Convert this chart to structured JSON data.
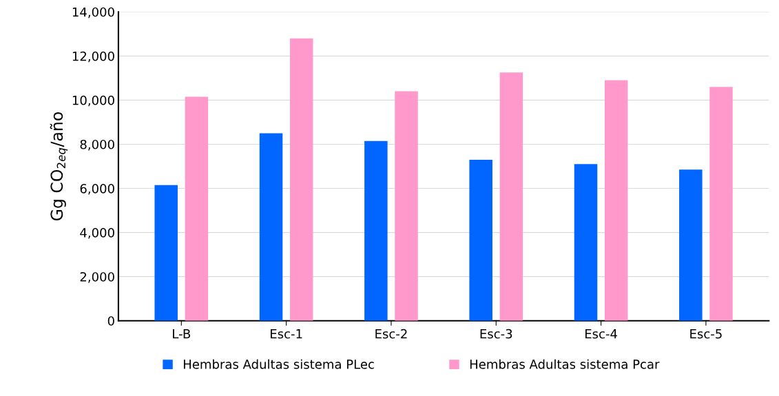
{
  "chart_data": {
    "type": "bar",
    "ylabel": "Gg CO$_{2eq}$/año",
    "categories": [
      "L-B",
      "Esc-1",
      "Esc-2",
      "Esc-3",
      "Esc-4",
      "Esc-5"
    ],
    "series": [
      {
        "name": "Hembras Adultas sistema PLec",
        "color": "#0066ff",
        "values": [
          6150,
          8500,
          8150,
          7300,
          7100,
          6850
        ]
      },
      {
        "name": "Hembras Adultas sistema Pcar",
        "color": "#ff99cc",
        "values": [
          10150,
          12800,
          10400,
          11250,
          10900,
          10600
        ]
      }
    ],
    "ylim": [
      0,
      14000
    ],
    "yticks": [
      {
        "value": 0,
        "label": "0"
      },
      {
        "value": 2000,
        "label": "2,000"
      },
      {
        "value": 4000,
        "label": "4,000"
      },
      {
        "value": 6000,
        "label": "6,000"
      },
      {
        "value": 8000,
        "label": "8,000"
      },
      {
        "value": 10000,
        "label": "10,000"
      },
      {
        "value": 12000,
        "label": "12,000"
      },
      {
        "value": 14000,
        "label": "14,000"
      }
    ],
    "grid": "y",
    "legend": "bottom"
  }
}
